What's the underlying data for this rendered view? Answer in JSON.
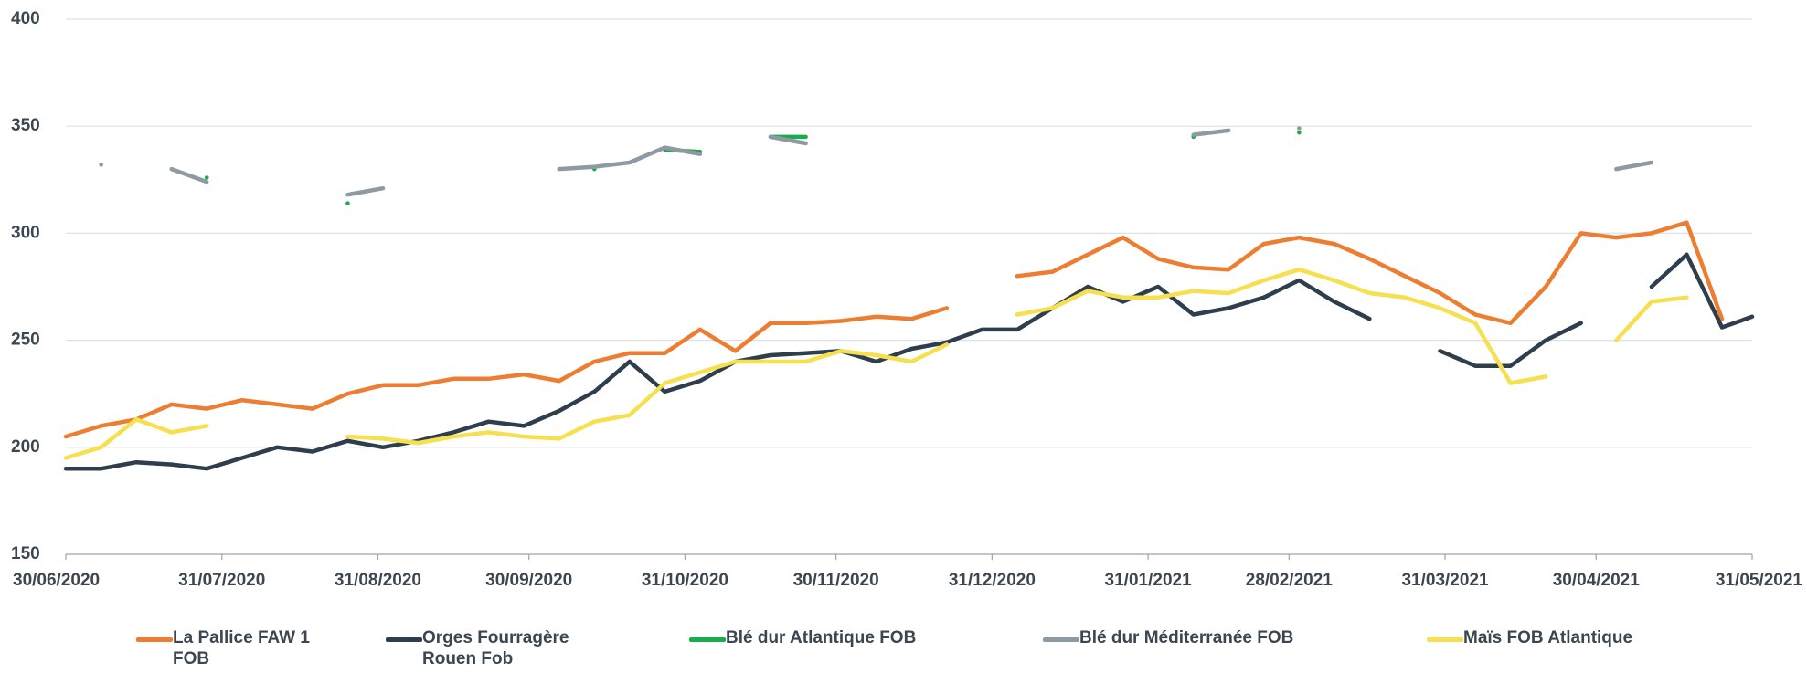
{
  "chart_data": {
    "type": "line",
    "x": [
      "30/06/2020",
      "07/07/2020",
      "14/07/2020",
      "21/07/2020",
      "28/07/2020",
      "04/08/2020",
      "11/08/2020",
      "18/08/2020",
      "25/08/2020",
      "01/09/2020",
      "08/09/2020",
      "15/09/2020",
      "22/09/2020",
      "29/09/2020",
      "06/10/2020",
      "13/10/2020",
      "20/10/2020",
      "27/10/2020",
      "03/11/2020",
      "10/11/2020",
      "17/11/2020",
      "24/11/2020",
      "01/12/2020",
      "08/12/2020",
      "15/12/2020",
      "22/12/2020",
      "29/12/2020",
      "05/01/2021",
      "12/01/2021",
      "19/01/2021",
      "26/01/2021",
      "02/02/2021",
      "09/02/2021",
      "16/02/2021",
      "23/02/2021",
      "02/03/2021",
      "09/03/2021",
      "16/03/2021",
      "23/03/2021",
      "30/03/2021",
      "06/04/2021",
      "13/04/2021",
      "20/04/2021",
      "27/04/2021",
      "04/05/2021",
      "11/05/2021",
      "18/05/2021",
      "25/05/2021",
      "31/05/2021"
    ],
    "series": [
      {
        "name": "La Pallice FAW 1 FOB",
        "color": "#ed7d31",
        "values": [
          205,
          210,
          213,
          220,
          218,
          222,
          220,
          218,
          225,
          229,
          229,
          232,
          232,
          234,
          231,
          240,
          244,
          244,
          255,
          245,
          258,
          258,
          259,
          261,
          260,
          265,
          null,
          280,
          282,
          290,
          298,
          288,
          284,
          283,
          295,
          298,
          295,
          288,
          280,
          272,
          262,
          258,
          275,
          300,
          298,
          300,
          305,
          260,
          null
        ]
      },
      {
        "name": "Orges Fourragère Rouen Fob",
        "color": "#2f3e4c",
        "values": [
          190,
          190,
          193,
          192,
          190,
          195,
          200,
          198,
          203,
          200,
          203,
          207,
          212,
          210,
          217,
          226,
          240,
          226,
          231,
          240,
          243,
          244,
          245,
          240,
          246,
          249,
          255,
          255,
          265,
          275,
          268,
          275,
          262,
          265,
          270,
          278,
          268,
          260,
          null,
          245,
          238,
          238,
          250,
          258,
          null,
          275,
          290,
          256,
          261
        ]
      },
      {
        "name": "Blé dur Atlantique FOB",
        "color": "#1aab4a",
        "values": [
          null,
          null,
          null,
          null,
          326,
          null,
          null,
          null,
          314,
          null,
          null,
          null,
          null,
          null,
          null,
          330,
          null,
          339,
          338,
          null,
          345,
          345,
          null,
          null,
          null,
          null,
          null,
          null,
          null,
          null,
          null,
          null,
          345,
          null,
          null,
          347,
          null,
          null,
          null,
          null,
          null,
          null,
          null,
          null,
          null,
          null,
          null,
          null,
          null
        ]
      },
      {
        "name": "Blé dur Méditerranée FOB",
        "color": "#8e9aa3",
        "values": [
          null,
          332,
          null,
          330,
          324,
          null,
          null,
          null,
          318,
          321,
          null,
          null,
          null,
          null,
          330,
          331,
          333,
          340,
          337,
          null,
          345,
          342,
          null,
          null,
          null,
          null,
          null,
          null,
          null,
          null,
          null,
          null,
          346,
          348,
          null,
          349,
          null,
          null,
          null,
          null,
          null,
          null,
          null,
          null,
          330,
          333,
          null,
          null,
          null
        ]
      },
      {
        "name": "Maïs FOB Atlantique",
        "color": "#f6e04f",
        "values": [
          195,
          200,
          213,
          207,
          210,
          null,
          null,
          null,
          205,
          204,
          202,
          205,
          207,
          205,
          204,
          212,
          215,
          230,
          235,
          240,
          240,
          240,
          245,
          243,
          240,
          248,
          null,
          262,
          265,
          273,
          270,
          270,
          273,
          272,
          278,
          283,
          278,
          272,
          270,
          265,
          258,
          230,
          233,
          null,
          250,
          268,
          270,
          null,
          null
        ]
      }
    ],
    "xlim": [
      "30/06/2020",
      "31/05/2021"
    ],
    "xticks": [
      "30/06/2020",
      "31/07/2020",
      "31/08/2020",
      "30/09/2020",
      "31/10/2020",
      "30/11/2020",
      "31/12/2020",
      "31/01/2021",
      "28/02/2021",
      "31/03/2021",
      "30/04/2021",
      "31/05/2021"
    ],
    "ylim": [
      150,
      400
    ],
    "yticks": [
      150,
      200,
      250,
      300,
      350,
      400
    ],
    "grid": true
  }
}
